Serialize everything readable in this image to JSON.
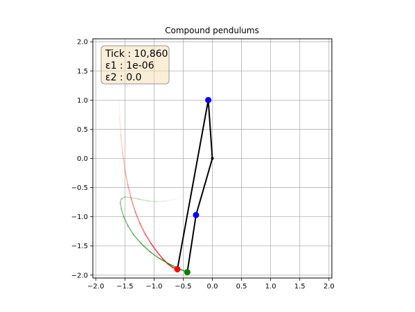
{
  "chart_data": {
    "type": "line",
    "title": "Compound pendulums",
    "xlabel": "",
    "ylabel": "",
    "xlim": [
      -2.05,
      2.05
    ],
    "ylim": [
      -2.05,
      2.05
    ],
    "grid": true,
    "x_ticks": [
      -2.0,
      -1.5,
      -1.0,
      -0.5,
      0.0,
      0.5,
      1.0,
      1.5,
      2.0
    ],
    "y_ticks": [
      -2.0,
      -1.5,
      -1.0,
      -0.5,
      0.0,
      0.5,
      1.0,
      1.5,
      2.0
    ],
    "x_tick_labels": [
      "−2.0",
      "−1.5",
      "−1.0",
      "−0.5",
      "0.0",
      "0.5",
      "1.0",
      "1.5",
      "2.0"
    ],
    "y_tick_labels": [
      "−2.0",
      "−1.5",
      "−1.0",
      "−0.5",
      "0.0",
      "0.5",
      "1.0",
      "1.5",
      "2.0"
    ],
    "info_box": {
      "lines": [
        "Tick : 10,860",
        "ε1 : 1e-06",
        "ε2 : 0.0"
      ],
      "placement": "top-left",
      "background": "#f5deb3",
      "border": "#8c8c8c"
    },
    "pivot": [
      0.0,
      0.0
    ],
    "pendulums": [
      {
        "arm_color": "#000000",
        "mid_bob": {
          "x": -0.07,
          "y": 1.0,
          "color": "#0000ff"
        },
        "end_bob": {
          "x": -0.6,
          "y": -1.9,
          "color": "#ff0000"
        },
        "trail": {
          "color": "#ff0000",
          "x": [
            -1.6,
            -1.59,
            -1.57,
            -1.54,
            -1.5,
            -1.45,
            -1.39,
            -1.32,
            -1.24,
            -1.15,
            -1.05,
            -0.95,
            -0.85,
            -0.76,
            -0.68,
            -0.6
          ],
          "y": [
            1.0,
            0.7,
            0.4,
            0.1,
            -0.2,
            -0.45,
            -0.7,
            -0.92,
            -1.12,
            -1.3,
            -1.46,
            -1.6,
            -1.72,
            -1.81,
            -1.87,
            -1.9
          ]
        }
      },
      {
        "arm_color": "#000000",
        "mid_bob": {
          "x": -0.28,
          "y": -0.97,
          "color": "#0000ff"
        },
        "end_bob": {
          "x": -0.43,
          "y": -1.95,
          "color": "#008000"
        },
        "trail": {
          "color": "#008000",
          "x": [
            -0.43,
            -0.55,
            -0.72,
            -0.9,
            -1.07,
            -1.22,
            -1.35,
            -1.45,
            -1.52,
            -1.56,
            -1.58,
            -1.56,
            -1.5,
            -1.4,
            -1.25,
            -1.1,
            -0.95,
            -0.8,
            -0.65,
            -0.5
          ],
          "y": [
            -1.95,
            -1.9,
            -1.82,
            -1.72,
            -1.6,
            -1.46,
            -1.31,
            -1.15,
            -1.0,
            -0.87,
            -0.76,
            -0.69,
            -0.66,
            -0.67,
            -0.7,
            -0.73,
            -0.74,
            -0.73,
            -0.7,
            -0.64
          ]
        }
      }
    ]
  }
}
